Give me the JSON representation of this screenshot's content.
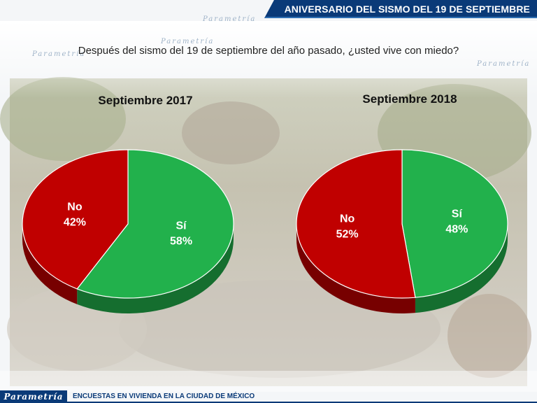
{
  "header": {
    "title": "ANIVERSARIO DEL SISMO DEL 19 DE SEPTIEMBRE"
  },
  "question": "Después del sismo del 19 de septiembre del año pasado, ¿usted vive con miedo?",
  "footer": {
    "brand": "Parametría",
    "text": "ENCUESTAS EN VIVIENDA EN LA CIUDAD DE MÉXICO"
  },
  "colors": {
    "header": "#0a3a78",
    "si": "#22b14c",
    "no": "#c00000"
  },
  "chart_data": [
    {
      "type": "pie",
      "title": "Septiembre 2017",
      "slices": [
        {
          "label": "Sí",
          "value": 58,
          "value_label": "58%",
          "color": "#22b14c"
        },
        {
          "label": "No",
          "value": 42,
          "value_label": "42%",
          "color": "#c00000"
        }
      ]
    },
    {
      "type": "pie",
      "title": "Septiembre 2018",
      "slices": [
        {
          "label": "Sí",
          "value": 48,
          "value_label": "48%",
          "color": "#22b14c"
        },
        {
          "label": "No",
          "value": 52,
          "value_label": "52%",
          "color": "#c00000"
        }
      ]
    }
  ]
}
